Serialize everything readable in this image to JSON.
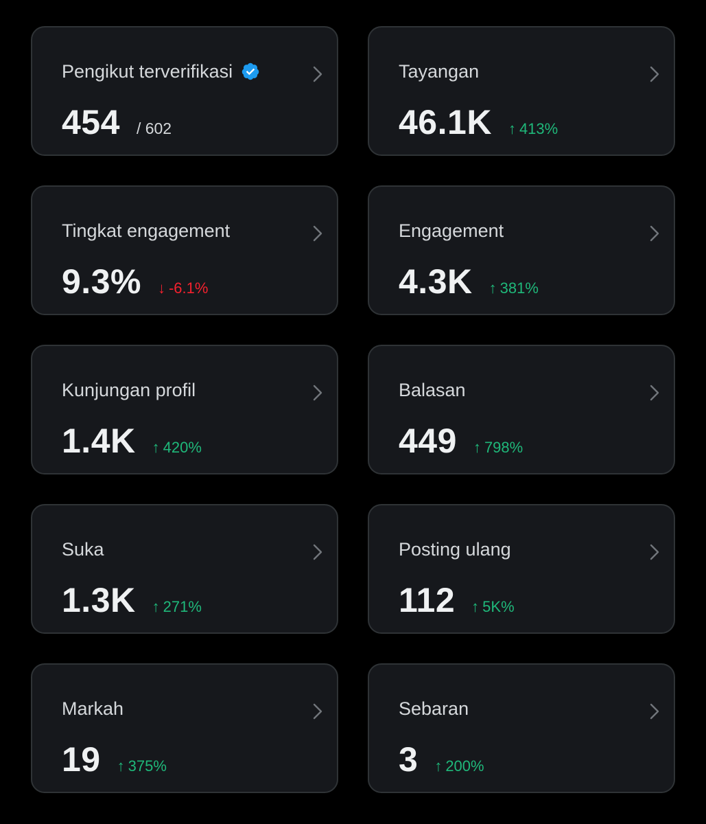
{
  "colors": {
    "background": "#000000",
    "card": "#16181c",
    "border": "#2f3336",
    "up": "#1fb87a",
    "down": "#f4212e",
    "verified": "#1d9bf0"
  },
  "icons": {
    "chevron": "chevron-right-icon",
    "verified": "verified-badge-icon",
    "up": "arrow-up-icon",
    "down": "arrow-down-icon"
  },
  "cards": [
    {
      "label": "Pengikut terverifikasi",
      "value": "454",
      "sub": "/ 602",
      "verified": true
    },
    {
      "label": "Tayangan",
      "value": "46.1K",
      "change": "413%",
      "direction": "up"
    },
    {
      "label": "Tingkat engagement",
      "value": "9.3%",
      "change": "-6.1%",
      "direction": "down"
    },
    {
      "label": "Engagement",
      "value": "4.3K",
      "change": "381%",
      "direction": "up"
    },
    {
      "label": "Kunjungan profil",
      "value": "1.4K",
      "change": "420%",
      "direction": "up"
    },
    {
      "label": "Balasan",
      "value": "449",
      "change": "798%",
      "direction": "up"
    },
    {
      "label": "Suka",
      "value": "1.3K",
      "change": "271%",
      "direction": "up"
    },
    {
      "label": "Posting ulang",
      "value": "112",
      "change": "5K%",
      "direction": "up"
    },
    {
      "label": "Markah",
      "value": "19",
      "change": "375%",
      "direction": "up"
    },
    {
      "label": "Sebaran",
      "value": "3",
      "change": "200%",
      "direction": "up"
    }
  ]
}
